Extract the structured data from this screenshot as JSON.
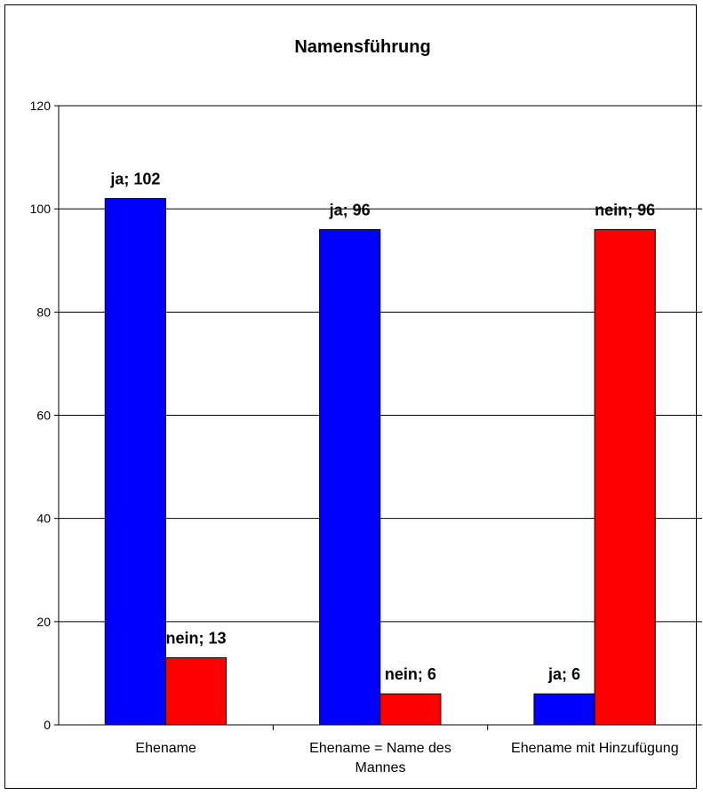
{
  "chart_data": {
    "type": "bar",
    "title": "Namensführung",
    "xlabel": "",
    "ylabel": "",
    "ylim": [
      0,
      120
    ],
    "yticks": [
      "0",
      "20",
      "40",
      "60",
      "80",
      "100",
      "120"
    ],
    "grid": true,
    "categories": [
      [
        "Ehename"
      ],
      [
        "Ehename = Name des",
        "Mannes"
      ],
      [
        "Ehename mit Hinzufügung"
      ]
    ],
    "series": [
      {
        "name": "ja",
        "color": "#0000ff",
        "values": [
          102,
          96,
          6
        ]
      },
      {
        "name": "nein",
        "color": "#ff0000",
        "values": [
          13,
          6,
          96
        ]
      }
    ],
    "data_labels": [
      [
        "ja; 102",
        "ja; 96",
        "ja; 6"
      ],
      [
        "nein; 13",
        "nein; 6",
        "nein; 96"
      ]
    ]
  }
}
